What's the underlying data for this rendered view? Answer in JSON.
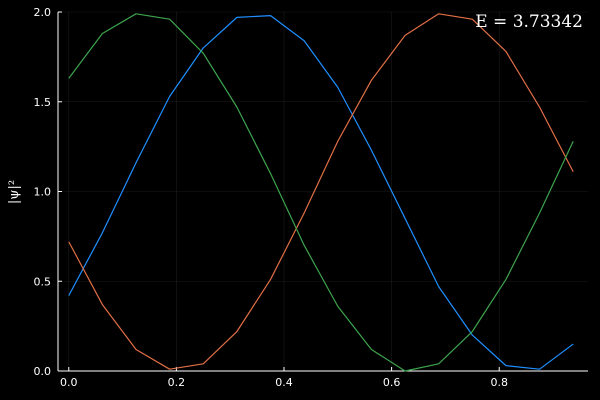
{
  "chart_data": {
    "type": "line",
    "title": "",
    "xlabel": "",
    "ylabel": "|ψ|²",
    "annotation": "E = 3.73342",
    "xlim": [
      -0.02,
      0.965
    ],
    "ylim": [
      0,
      2.0
    ],
    "xticks": [
      {
        "value": 0.0,
        "label": "0.0"
      },
      {
        "value": 0.2,
        "label": "0.2"
      },
      {
        "value": 0.4,
        "label": "0.4"
      },
      {
        "value": 0.6,
        "label": "0.6"
      },
      {
        "value": 0.8,
        "label": "0.8"
      }
    ],
    "yticks": [
      {
        "value": 0.0,
        "label": "0.0"
      },
      {
        "value": 0.5,
        "label": "0.5"
      },
      {
        "value": 1.0,
        "label": "1.0"
      },
      {
        "value": 1.5,
        "label": "1.5"
      },
      {
        "value": 2.0,
        "label": "2.0"
      }
    ],
    "grid": true,
    "legend": "none",
    "x": [
      0.0,
      0.0625,
      0.125,
      0.1875,
      0.25,
      0.3125,
      0.375,
      0.4375,
      0.5,
      0.5625,
      0.625,
      0.6875,
      0.75,
      0.8125,
      0.875,
      0.9375
    ],
    "series": [
      {
        "color": "#1f8fff",
        "values": [
          0.42,
          0.77,
          1.16,
          1.53,
          1.8,
          1.97,
          1.98,
          1.84,
          1.58,
          1.23,
          0.85,
          0.47,
          0.2,
          0.03,
          0.01,
          0.15
        ]
      },
      {
        "color": "#e26f46",
        "values": [
          0.72,
          0.37,
          0.12,
          0.01,
          0.04,
          0.22,
          0.51,
          0.88,
          1.28,
          1.62,
          1.87,
          1.99,
          1.96,
          1.78,
          1.47,
          1.11
        ]
      },
      {
        "color": "#3da44d",
        "values": [
          1.63,
          1.88,
          1.99,
          1.96,
          1.77,
          1.47,
          1.1,
          0.7,
          0.36,
          0.12,
          0.0,
          0.04,
          0.22,
          0.51,
          0.88,
          1.28
        ]
      }
    ]
  }
}
